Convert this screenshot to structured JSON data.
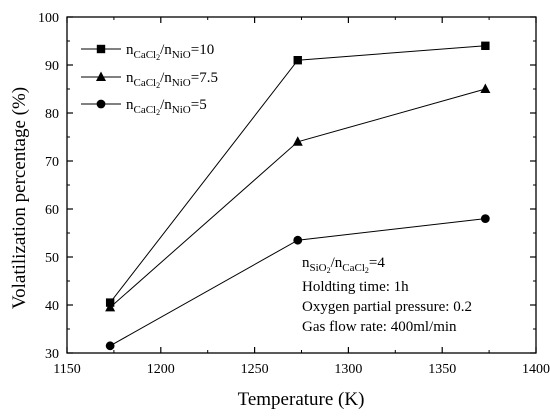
{
  "chart_data": {
    "type": "line",
    "xlabel": "Temperature (K)",
    "ylabel": "Volatilization percentage (%)",
    "xlim": [
      1150,
      1400
    ],
    "ylim": [
      30,
      100
    ],
    "xticks": [
      1150,
      1200,
      1250,
      1300,
      1350,
      1400
    ],
    "yticks": [
      30,
      40,
      50,
      60,
      70,
      80,
      90,
      100
    ],
    "x": [
      1173,
      1273,
      1373
    ],
    "grid": false,
    "legend_position": "top-left",
    "series": [
      {
        "name": "nCaCl2/nNiO=10",
        "legend": {
          "pre": "n",
          "sub1": "CaCl",
          "sub1b": "2",
          "mid": "/n",
          "sub2": "NiO",
          "post": "=10"
        },
        "marker": "square",
        "values": [
          40.5,
          91,
          94
        ]
      },
      {
        "name": "nCaCl2/nNiO=7.5",
        "legend": {
          "pre": "n",
          "sub1": "CaCl",
          "sub1b": "2",
          "mid": "/n",
          "sub2": "NiO",
          "post": "=7.5"
        },
        "marker": "triangle",
        "values": [
          39.5,
          74,
          85
        ]
      },
      {
        "name": "nCaCl2/nNiO=5",
        "legend": {
          "pre": "n",
          "sub1": "CaCl",
          "sub1b": "2",
          "mid": "/n",
          "sub2": "NiO",
          "post": "=5"
        },
        "marker": "circle",
        "values": [
          31.5,
          53.5,
          58
        ]
      }
    ],
    "annotations": {
      "ratio": {
        "pre": "n",
        "sub1": "SiO",
        "sub1b": "2",
        "mid": "/n",
        "sub2": "CaCl",
        "sub2b": "2",
        "post": "=4"
      },
      "lines": [
        "Holdting time: 1h",
        "Oxygen partial pressure: 0.2",
        "Gas flow rate: 400ml/min"
      ]
    }
  }
}
